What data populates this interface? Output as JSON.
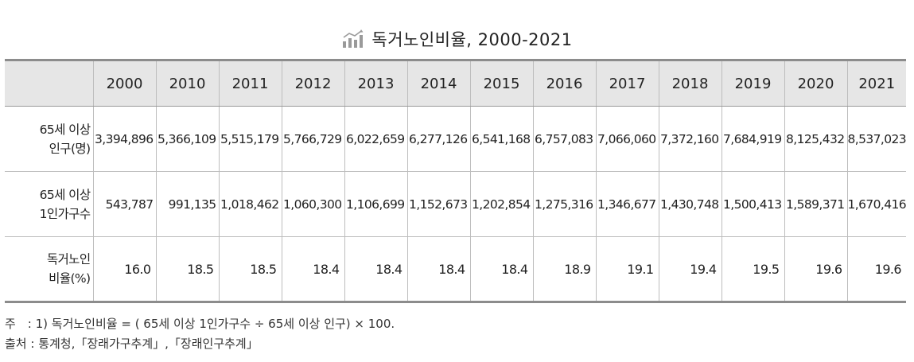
{
  "title": "독거노인비율, 2000-2021",
  "icon": "bar-chart-icon",
  "chart_data": {
    "type": "table",
    "title": "독거노인비율, 2000-2021",
    "columns": [
      "",
      "2000",
      "2010",
      "2011",
      "2012",
      "2013",
      "2014",
      "2015",
      "2016",
      "2017",
      "2018",
      "2019",
      "2020",
      "2021"
    ],
    "rows": [
      {
        "label_line1": "65세 이상",
        "label_line2": "인구(명)",
        "values": [
          "3,394,896",
          "5,366,109",
          "5,515,179",
          "5,766,729",
          "6,022,659",
          "6,277,126",
          "6,541,168",
          "6,757,083",
          "7,066,060",
          "7,372,160",
          "7,684,919",
          "8,125,432",
          "8,537,023"
        ]
      },
      {
        "label_line1": "65세 이상",
        "label_line2": "1인가구수",
        "values": [
          "543,787",
          "991,135",
          "1,018,462",
          "1,060,300",
          "1,106,699",
          "1,152,673",
          "1,202,854",
          "1,275,316",
          "1,346,677",
          "1,430,748",
          "1,500,413",
          "1,589,371",
          "1,670,416"
        ]
      },
      {
        "label_line1": "독거노인",
        "label_line2": "비율(%)",
        "values": [
          "16.0",
          "18.5",
          "18.5",
          "18.4",
          "18.4",
          "18.4",
          "18.4",
          "18.9",
          "19.1",
          "19.4",
          "19.5",
          "19.6",
          "19.6"
        ]
      }
    ]
  },
  "notes": {
    "formula": "주　: 1) 독거노인비율 = ( 65세 이상 1인가구수 ÷ 65세 이상 인구) × 100.",
    "source": "출처 : 통계청,「장래가구추계」,「장래인구추계」"
  }
}
